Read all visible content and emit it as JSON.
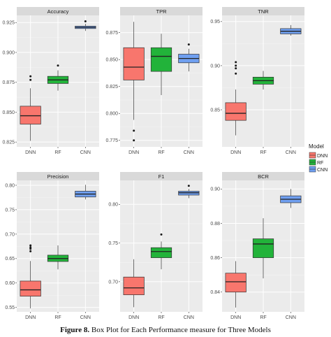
{
  "caption": {
    "label": "Figure 8.",
    "text": " Box Plot for Each Performance measure for Three Models"
  },
  "legend": {
    "title": "Model",
    "items": [
      "DNN",
      "RF",
      "CNN"
    ]
  },
  "colors": {
    "DNN": "#f8766d",
    "RF": "#22b33a",
    "CNN": "#6f9ff0",
    "panel_bg": "#ebebeb",
    "strip_bg": "#d9d9d9"
  },
  "chart_data": [
    {
      "type": "box",
      "title": "Accuracy",
      "categories": [
        "DNN",
        "RF",
        "CNN"
      ],
      "ylim": [
        0.821,
        0.931
      ],
      "ticks": [
        0.825,
        0.85,
        0.875,
        0.9,
        0.925
      ],
      "tick_labels": [
        "0.825",
        "0.850",
        "0.875",
        "0.900",
        "0.925"
      ],
      "boxes": [
        {
          "min": 0.826,
          "q1": 0.84,
          "median": 0.847,
          "q3": 0.855,
          "max": 0.87,
          "outliers": [
            0.877,
            0.88
          ]
        },
        {
          "min": 0.868,
          "q1": 0.874,
          "median": 0.877,
          "q3": 0.88,
          "max": 0.885,
          "outliers": [
            0.889
          ]
        },
        {
          "min": 0.918,
          "q1": 0.92,
          "median": 0.921,
          "q3": 0.922,
          "max": 0.924,
          "outliers": [
            0.926
          ]
        }
      ]
    },
    {
      "type": "box",
      "title": "TPR",
      "categories": [
        "DNN",
        "RF",
        "CNN"
      ],
      "ylim": [
        0.769,
        0.891
      ],
      "ticks": [
        0.775,
        0.8,
        0.825,
        0.85,
        0.875
      ],
      "tick_labels": [
        "0.775",
        "0.800",
        "0.825",
        "0.850",
        "0.875"
      ],
      "boxes": [
        {
          "min": 0.794,
          "q1": 0.831,
          "median": 0.843,
          "q3": 0.861,
          "max": 0.885,
          "outliers": [
            0.784,
            0.775
          ]
        },
        {
          "min": 0.817,
          "q1": 0.839,
          "median": 0.853,
          "q3": 0.861,
          "max": 0.874,
          "outliers": []
        },
        {
          "min": 0.839,
          "q1": 0.847,
          "median": 0.851,
          "q3": 0.855,
          "max": 0.86,
          "outliers": [
            0.864
          ]
        }
      ]
    },
    {
      "type": "box",
      "title": "TNR",
      "categories": [
        "DNN",
        "RF",
        "CNN"
      ],
      "ylim": [
        0.808,
        0.957
      ],
      "ticks": [
        0.85,
        0.9,
        0.95
      ],
      "tick_labels": [
        "0.85",
        "0.90",
        "0.95"
      ],
      "boxes": [
        {
          "min": 0.821,
          "q1": 0.838,
          "median": 0.846,
          "q3": 0.858,
          "max": 0.873,
          "outliers": [
            0.891,
            0.897,
            0.9,
            0.904
          ]
        },
        {
          "min": 0.873,
          "q1": 0.879,
          "median": 0.883,
          "q3": 0.887,
          "max": 0.894,
          "outliers": []
        },
        {
          "min": 0.934,
          "q1": 0.936,
          "median": 0.939,
          "q3": 0.942,
          "max": 0.946,
          "outliers": []
        }
      ]
    },
    {
      "type": "box",
      "title": "Precision",
      "categories": [
        "DNN",
        "RF",
        "CNN"
      ],
      "ylim": [
        0.541,
        0.81
      ],
      "ticks": [
        0.55,
        0.6,
        0.65,
        0.7,
        0.75,
        0.8
      ],
      "tick_labels": [
        "0.55",
        "0.60",
        "0.65",
        "0.70",
        "0.75",
        "0.80"
      ],
      "boxes": [
        {
          "min": 0.548,
          "q1": 0.573,
          "median": 0.586,
          "q3": 0.604,
          "max": 0.645,
          "outliers": [
            0.665,
            0.67,
            0.673,
            0.677
          ]
        },
        {
          "min": 0.628,
          "q1": 0.644,
          "median": 0.65,
          "q3": 0.657,
          "max": 0.677,
          "outliers": []
        },
        {
          "min": 0.771,
          "q1": 0.776,
          "median": 0.782,
          "q3": 0.788,
          "max": 0.801,
          "outliers": []
        }
      ]
    },
    {
      "type": "box",
      "title": "F1",
      "categories": [
        "DNN",
        "RF",
        "CNN"
      ],
      "ylim": [
        0.661,
        0.831
      ],
      "ticks": [
        0.7,
        0.75,
        0.8
      ],
      "tick_labels": [
        "0.70",
        "0.75",
        "0.80"
      ],
      "boxes": [
        {
          "min": 0.667,
          "q1": 0.683,
          "median": 0.692,
          "q3": 0.706,
          "max": 0.729,
          "outliers": []
        },
        {
          "min": 0.716,
          "q1": 0.731,
          "median": 0.739,
          "q3": 0.744,
          "max": 0.752,
          "outliers": [
            0.761
          ]
        },
        {
          "min": 0.808,
          "q1": 0.812,
          "median": 0.815,
          "q3": 0.817,
          "max": 0.82,
          "outliers": [
            0.824
          ]
        }
      ]
    },
    {
      "type": "box",
      "title": "BCR",
      "categories": [
        "DNN",
        "RF",
        "CNN"
      ],
      "ylim": [
        0.8285,
        0.905
      ],
      "ticks": [
        0.84,
        0.86,
        0.88,
        0.9
      ],
      "tick_labels": [
        "0.84",
        "0.86",
        "0.88",
        "0.90"
      ],
      "boxes": [
        {
          "min": 0.831,
          "q1": 0.84,
          "median": 0.846,
          "q3": 0.851,
          "max": 0.858,
          "outliers": []
        },
        {
          "min": 0.848,
          "q1": 0.86,
          "median": 0.868,
          "q3": 0.871,
          "max": 0.883,
          "outliers": []
        },
        {
          "min": 0.889,
          "q1": 0.892,
          "median": 0.894,
          "q3": 0.896,
          "max": 0.9,
          "outliers": []
        }
      ]
    }
  ]
}
